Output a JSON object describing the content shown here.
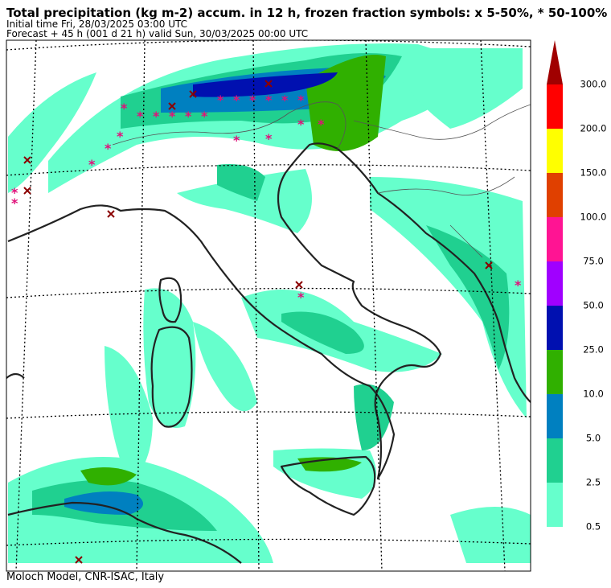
{
  "header": {
    "title": "Total precipitation (kg m-2) accum. in 12 h, frozen fraction symbols: x 5-50%, * 50-100%",
    "initial_time": "Initial time  Fri, 28/03/2025  03:00 UTC",
    "forecast": "Forecast  +  45 h  (001 d 21 h)  valid Sun, 30/03/2025 00:00 UTC"
  },
  "colorbar": {
    "levels": [
      {
        "value": 0.5,
        "label": "0.5"
      },
      {
        "value": 2.5,
        "label": "2.5"
      },
      {
        "value": 5,
        "label": "5.0"
      },
      {
        "value": 10,
        "label": "10.0"
      },
      {
        "value": 25,
        "label": "25.0"
      },
      {
        "value": 50,
        "label": "50.0"
      },
      {
        "value": 75,
        "label": "75.0"
      },
      {
        "value": 100,
        "label": "100.0"
      },
      {
        "value": 150,
        "label": "150.0"
      },
      {
        "value": 200,
        "label": "200.0"
      },
      {
        "value": 300,
        "label": "300.0"
      }
    ],
    "colors": [
      "#66ffcc",
      "#20d090",
      "#0080c0",
      "#30b000",
      "#0010b0",
      "#a000ff",
      "#ff1493",
      "#e04000",
      "#ffff00",
      "#ff0000"
    ],
    "over_color": "#a00000"
  },
  "footer": "Moloch Model, CNR-ISAC, Italy"
}
